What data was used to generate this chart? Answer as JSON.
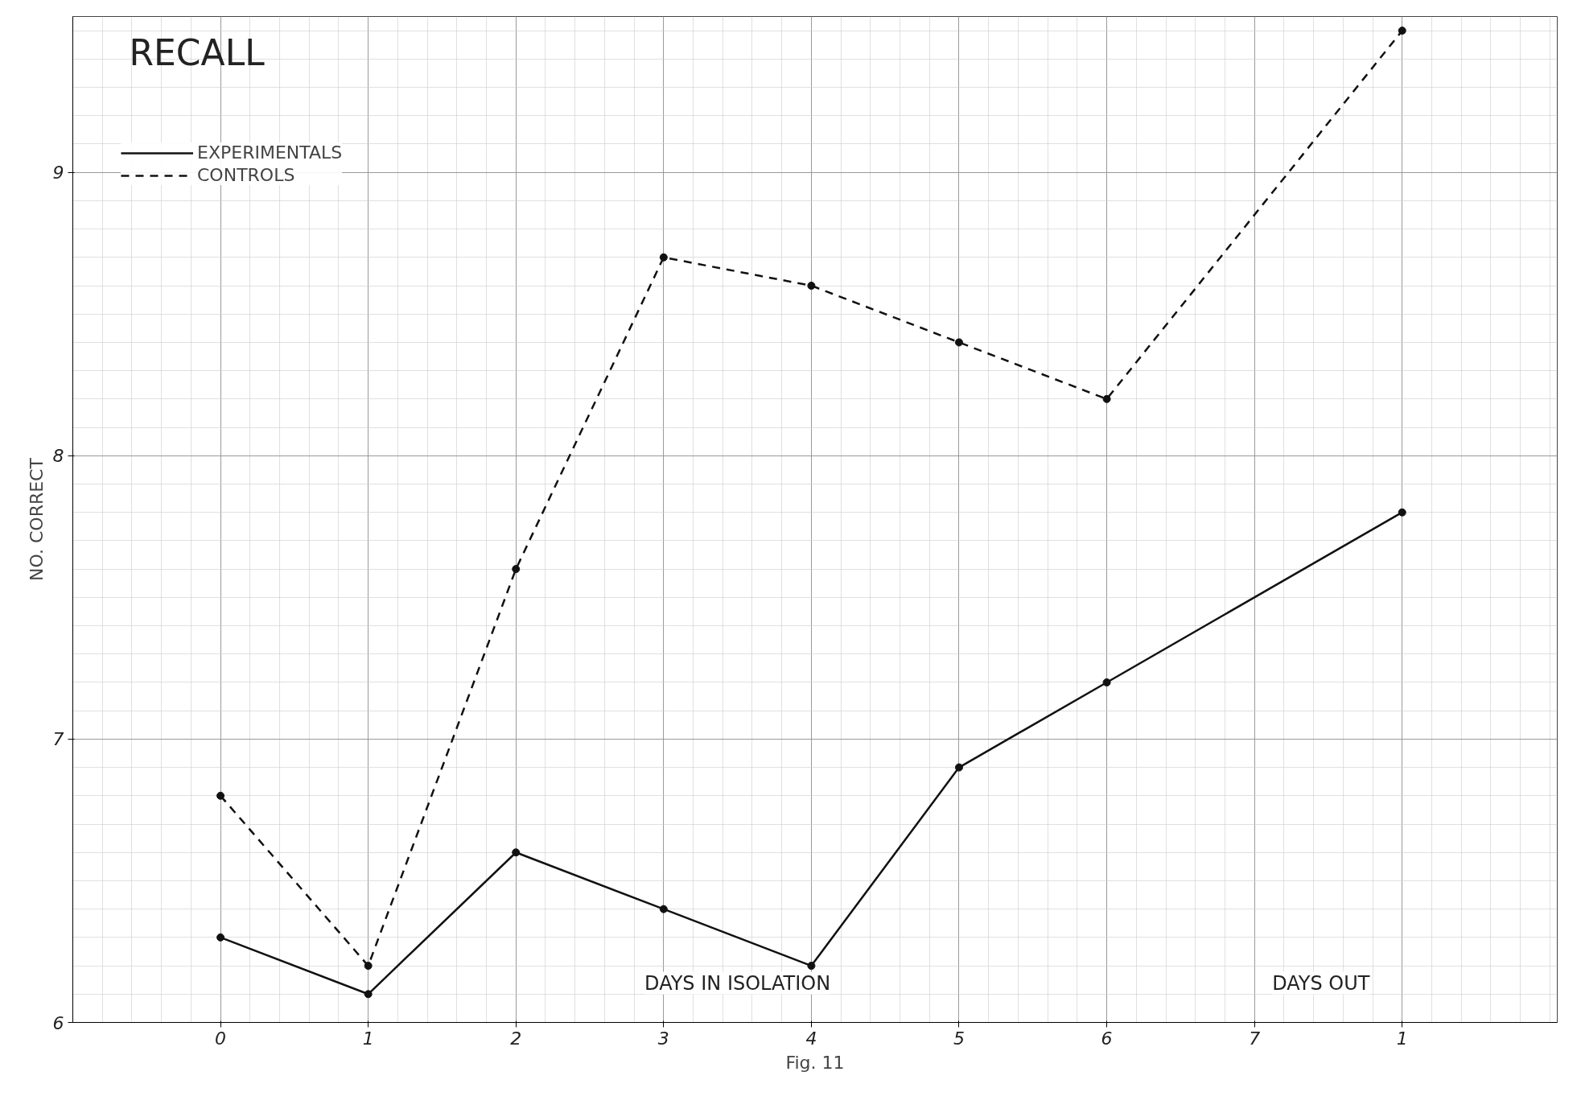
{
  "chart_data": {
    "type": "line",
    "title": "RECALL",
    "ylabel": "NO. CORRECT",
    "categories": [
      "0",
      "1",
      "2",
      "3",
      "4",
      "5",
      "6",
      "7",
      "1"
    ],
    "series": [
      {
        "name": "EXPERIMENTALS",
        "color": "#111111",
        "line_style": "solid",
        "values": [
          6.3,
          6.1,
          6.6,
          6.4,
          6.2,
          6.9,
          7.2,
          null,
          7.8
        ]
      },
      {
        "name": "CONTROLS",
        "color": "#111111",
        "line_style": "dashed",
        "values": [
          6.8,
          6.2,
          7.6,
          8.7,
          8.6,
          8.4,
          8.2,
          null,
          9.5
        ]
      }
    ],
    "ylim": [
      6,
      9.55
    ],
    "yticks": [
      6,
      7,
      8,
      9
    ],
    "grid": true,
    "legend": "top left",
    "marker": "circle",
    "annotations": [
      "DAYS IN ISOLATION",
      "DAYS OUT",
      "Fig. 11"
    ]
  }
}
